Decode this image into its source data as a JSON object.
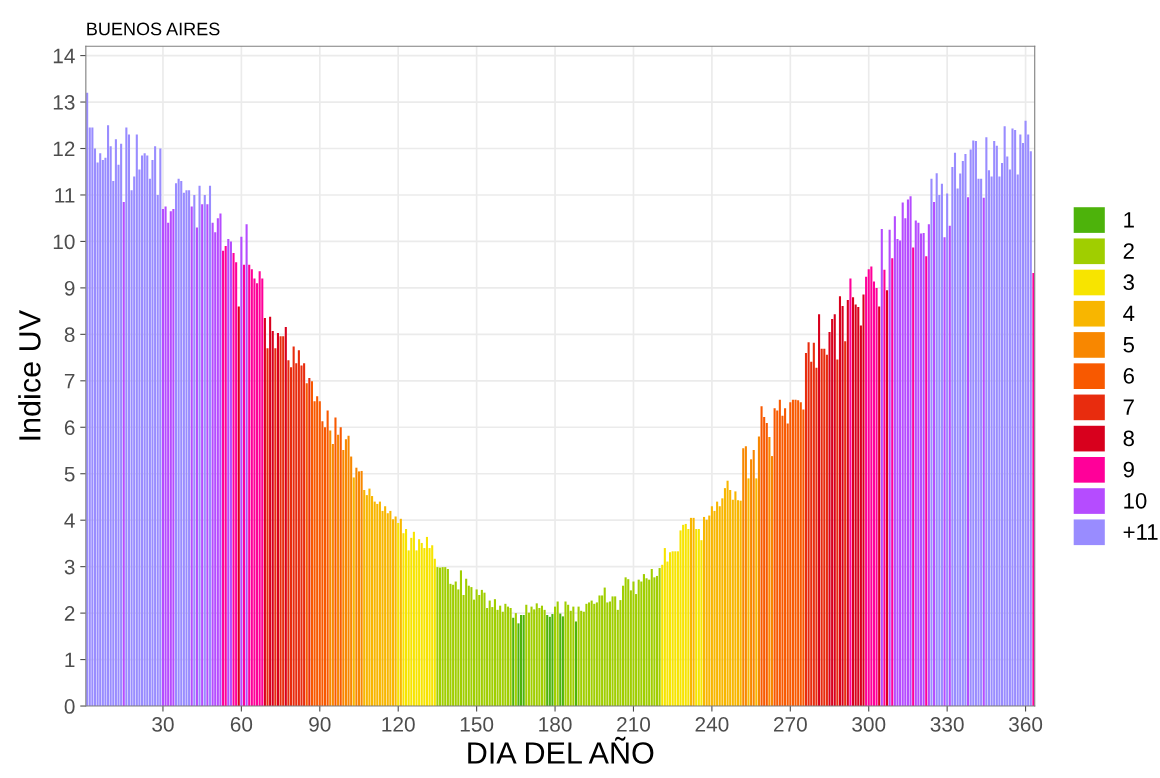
{
  "chart_data": {
    "type": "bar",
    "title": "BUENOS AIRES",
    "xlabel": "DIA DEL AÑO",
    "ylabel": "Indice UV",
    "xlim": [
      0.5,
      363.5
    ],
    "xticks": [
      30,
      60,
      90,
      120,
      150,
      180,
      210,
      240,
      270,
      300,
      330,
      360
    ],
    "ylim": [
      0,
      14.2
    ],
    "yticks": [
      0,
      1,
      2,
      3,
      4,
      5,
      6,
      7,
      8,
      9,
      10,
      11,
      12,
      13,
      14
    ],
    "grid": true,
    "legend": "right",
    "series": [
      {
        "name": "1",
        "color": "#4db30b",
        "x": [
          164,
          166,
          167,
          168,
          177,
          178,
          179,
          182,
          183,
          188
        ],
        "values": [
          1.9,
          1.78,
          1.96,
          1.96,
          1.96,
          1.92,
          1.98,
          1.99,
          1.93,
          1.82
        ]
      },
      {
        "name": "2",
        "color": "#a0ce00",
        "x": [
          135,
          136,
          137,
          138,
          139,
          140,
          141,
          142,
          143,
          144,
          145,
          146,
          147,
          148,
          149,
          150,
          151,
          152,
          153,
          154,
          155,
          156,
          157,
          158,
          159,
          160,
          161,
          162,
          163,
          165,
          169,
          170,
          171,
          172,
          173,
          174,
          175,
          176,
          180,
          181,
          184,
          185,
          186,
          187,
          189,
          190,
          191,
          192,
          193,
          194,
          195,
          196,
          197,
          198,
          199,
          200,
          201,
          202,
          203,
          204,
          205,
          206,
          207,
          208,
          209,
          210,
          211,
          212,
          213,
          214,
          215,
          216,
          217,
          218,
          219,
          220
        ],
        "values": [
          2.99,
          2.98,
          2.99,
          2.99,
          2.95,
          2.63,
          2.61,
          2.68,
          2.51,
          2.92,
          2.39,
          2.74,
          2.59,
          2.56,
          2.29,
          2.51,
          2.39,
          2.5,
          2.44,
          2.11,
          2.27,
          2.13,
          2.3,
          2.07,
          2.16,
          2.03,
          2.2,
          2.14,
          2.11,
          2.0,
          2.18,
          2.01,
          2.14,
          2.08,
          2.21,
          2.11,
          2.16,
          2.07,
          2.14,
          2.25,
          2.25,
          2.18,
          2.05,
          2.14,
          2.14,
          2.05,
          2.03,
          2.2,
          2.23,
          2.27,
          2.2,
          2.23,
          2.38,
          2.38,
          2.55,
          2.23,
          2.25,
          2.36,
          2.36,
          2.07,
          2.28,
          2.59,
          2.77,
          2.73,
          2.49,
          2.68,
          2.41,
          2.72,
          2.68,
          2.84,
          2.75,
          2.72,
          2.95,
          2.77,
          2.8,
          2.97
        ]
      },
      {
        "name": "3",
        "color": "#f7e400",
        "x": [
          120,
          122,
          123,
          124,
          125,
          126,
          127,
          128,
          129,
          130,
          131,
          132,
          133,
          134,
          221,
          222,
          223,
          224,
          225,
          226,
          227,
          228,
          229,
          230,
          231,
          234,
          235,
          236
        ],
        "values": [
          3.94,
          3.72,
          3.81,
          3.35,
          3.62,
          3.75,
          3.35,
          3.59,
          3.51,
          3.4,
          3.64,
          3.4,
          3.46,
          3.17,
          3.04,
          3.4,
          3.11,
          3.31,
          3.33,
          3.33,
          3.33,
          3.78,
          3.9,
          3.92,
          3.81,
          3.81,
          3.81,
          3.57
        ]
      },
      {
        "name": "4",
        "color": "#f8b600",
        "x": [
          103,
          107,
          108,
          109,
          110,
          111,
          112,
          113,
          114,
          115,
          116,
          117,
          118,
          119,
          121,
          232,
          233,
          237,
          238,
          239,
          240,
          241,
          242,
          243,
          244,
          245,
          246,
          247,
          248,
          249,
          250,
          251,
          254,
          257
        ],
        "values": [
          4.92,
          4.65,
          4.54,
          4.68,
          4.52,
          4.4,
          4.35,
          4.4,
          4.2,
          4.3,
          4.15,
          4.2,
          4.02,
          4.08,
          4.03,
          4.05,
          4.05,
          4.07,
          4.01,
          4.1,
          4.3,
          4.2,
          4.4,
          4.3,
          4.47,
          4.69,
          4.85,
          4.65,
          4.44,
          4.62,
          4.43,
          4.42,
          4.9,
          4.9
        ]
      },
      {
        "name": "5",
        "color": "#f88700",
        "x": [
          94,
          95,
          97,
          99,
          100,
          101,
          102,
          104,
          105,
          106,
          252,
          253,
          255,
          256,
          258,
          262,
          263
        ],
        "values": [
          5.93,
          5.64,
          5.84,
          5.51,
          5.74,
          5.82,
          5.37,
          5.13,
          5.05,
          5.06,
          5.55,
          5.59,
          5.31,
          5.51,
          5.8,
          5.79,
          5.38
        ]
      },
      {
        "name": "6",
        "color": "#f85900",
        "x": [
          85,
          87,
          88,
          89,
          90,
          91,
          92,
          93,
          96,
          98,
          259,
          260,
          261,
          264,
          265,
          266,
          267,
          268,
          269,
          270,
          271,
          272,
          273,
          274,
          275
        ],
        "values": [
          6.95,
          6.99,
          6.56,
          6.67,
          6.56,
          6.13,
          6.0,
          6.36,
          6.21,
          6.0,
          6.45,
          6.22,
          6.09,
          6.41,
          6.36,
          6.59,
          6.25,
          6.41,
          6.08,
          6.54,
          6.59,
          6.59,
          6.58,
          6.54,
          6.38
        ]
      },
      {
        "name": "7",
        "color": "#e82c0e",
        "x": [
          70,
          73,
          75,
          76,
          78,
          79,
          80,
          81,
          82,
          83,
          84,
          86,
          276,
          277,
          278,
          279,
          280,
          282,
          283,
          284,
          288,
          291
        ],
        "values": [
          7.7,
          7.7,
          7.96,
          7.96,
          7.44,
          7.29,
          7.74,
          7.38,
          7.66,
          7.33,
          7.38,
          7.06,
          7.6,
          7.83,
          7.41,
          7.82,
          7.28,
          7.69,
          7.69,
          7.56,
          7.46,
          7.85
        ]
      },
      {
        "name": "8",
        "color": "#d8001d",
        "x": [
          59,
          69,
          71,
          72,
          74,
          77,
          281,
          285,
          286,
          287,
          289,
          290,
          292,
          294,
          295,
          296,
          297,
          298,
          304,
          307
        ],
        "values": [
          8.6,
          8.35,
          8.38,
          8.07,
          8.03,
          8.16,
          8.43,
          8.05,
          8.33,
          8.43,
          8.82,
          8.61,
          8.74,
          8.8,
          8.64,
          8.59,
          8.19,
          8.86,
          8.6,
          8.95
        ]
      },
      {
        "name": "9",
        "color": "#ff0099",
        "x": [
          53,
          54,
          57,
          58,
          61,
          63,
          64,
          65,
          66,
          67,
          68,
          293,
          299,
          300,
          301,
          302,
          303,
          306,
          309,
          317,
          322,
          363
        ],
        "values": [
          9.8,
          9.9,
          9.75,
          9.55,
          9.5,
          9.5,
          9.4,
          9.2,
          9.1,
          9.36,
          9.2,
          9.2,
          9.24,
          9.4,
          9.46,
          9.14,
          9.0,
          9.39,
          9.64,
          9.87,
          9.68,
          9.32
        ]
      },
      {
        "name": "10",
        "color": "#b54cff",
        "x": [
          15,
          30,
          31,
          32,
          33,
          34,
          41,
          43,
          45,
          47,
          49,
          50,
          51,
          52,
          55,
          56,
          60,
          62,
          305,
          308,
          310,
          311,
          312,
          313,
          314,
          315,
          316,
          318,
          319,
          320,
          321,
          323,
          325,
          329,
          331,
          338,
          344
        ],
        "values": [
          10.85,
          10.7,
          10.75,
          10.4,
          10.65,
          10.7,
          10.75,
          10.3,
          10.8,
          10.8,
          10.4,
          10.2,
          10.5,
          10.6,
          10.05,
          10.0,
          10.1,
          10.37,
          10.27,
          10.25,
          10.54,
          10.05,
          10.02,
          10.84,
          10.5,
          10.9,
          10.97,
          10.45,
          10.4,
          10.17,
          10.18,
          10.37,
          10.85,
          10.09,
          10.34,
          10.95,
          10.94
        ]
      },
      {
        "name": "+11",
        "color": "#998cff",
        "x": [
          1,
          2,
          3,
          4,
          5,
          6,
          7,
          8,
          9,
          10,
          11,
          12,
          13,
          14,
          16,
          17,
          18,
          19,
          20,
          21,
          22,
          23,
          24,
          25,
          26,
          27,
          28,
          29,
          35,
          36,
          37,
          38,
          39,
          40,
          42,
          44,
          46,
          48,
          324,
          326,
          327,
          328,
          330,
          332,
          333,
          334,
          335,
          336,
          337,
          339,
          340,
          341,
          342,
          343,
          345,
          346,
          347,
          348,
          349,
          350,
          351,
          352,
          353,
          354,
          355,
          356,
          357,
          358,
          359,
          360,
          361,
          362
        ],
        "values": [
          13.2,
          12.45,
          12.45,
          12.0,
          11.7,
          11.9,
          11.75,
          11.8,
          12.5,
          12.05,
          11.3,
          12.2,
          11.65,
          12.1,
          12.45,
          12.3,
          11.1,
          11.4,
          12.3,
          11.55,
          11.85,
          11.9,
          11.85,
          11.35,
          11.75,
          12.05,
          11.0,
          12.0,
          11.25,
          11.35,
          11.3,
          11.05,
          11.1,
          11.1,
          11.0,
          11.2,
          11.0,
          11.2,
          11.35,
          11.47,
          11.0,
          11.24,
          11.03,
          11.6,
          11.91,
          11.14,
          11.46,
          11.73,
          11.88,
          11.98,
          12.17,
          12.16,
          11.35,
          11.35,
          12.24,
          11.53,
          11.4,
          12.16,
          12.06,
          11.4,
          11.69,
          12.48,
          11.83,
          11.55,
          12.43,
          12.4,
          11.44,
          12.3,
          12.12,
          12.6,
          12.3,
          11.94
        ]
      }
    ]
  }
}
